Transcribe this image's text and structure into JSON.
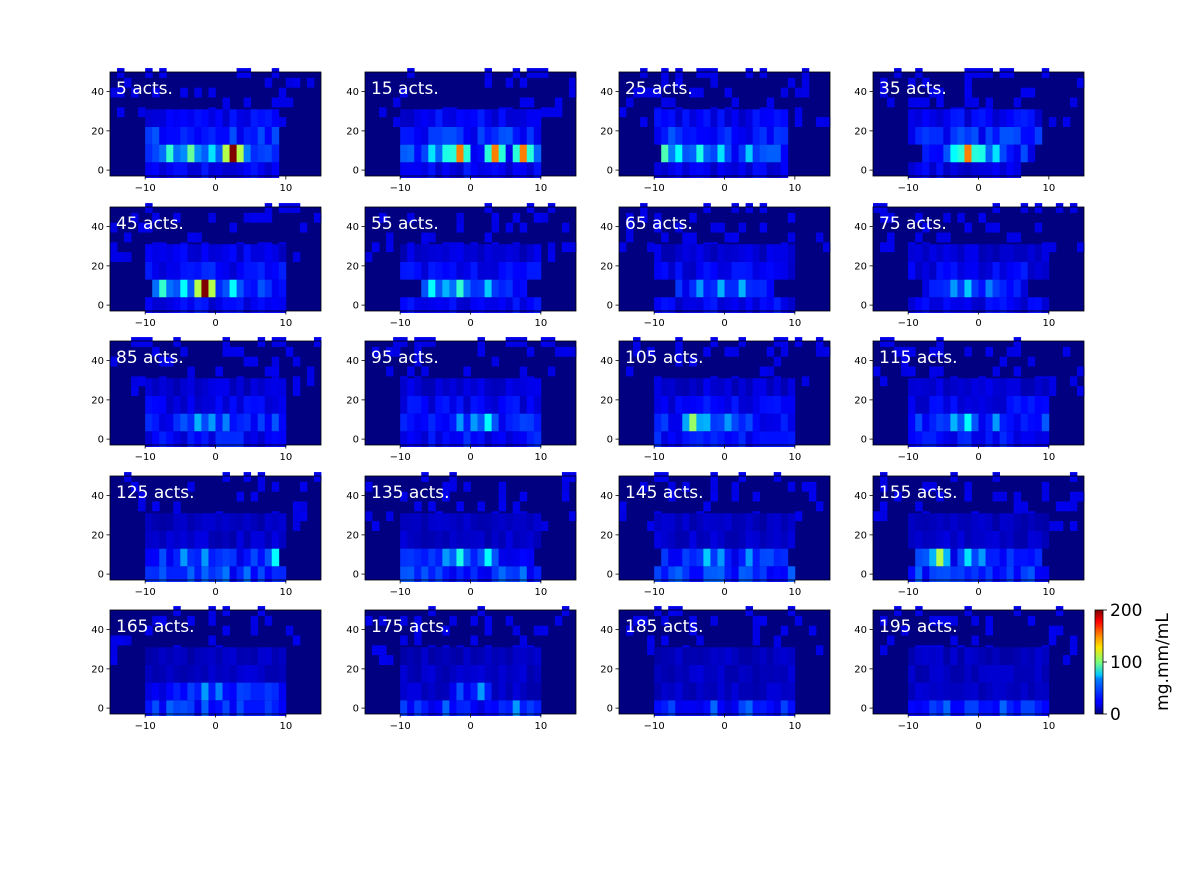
{
  "chart_data": {
    "type": "heatmap",
    "layout": "grid 5 rows x 4 columns of small-multiple heatmaps",
    "colormap": "jet",
    "background_value": 0,
    "xlim": [
      -15,
      15
    ],
    "ylim": [
      -3,
      50
    ],
    "xticks": [
      -10,
      0,
      10
    ],
    "yticks": [
      0,
      20,
      40
    ],
    "xtick_labels": [
      "−10",
      "0",
      "10"
    ],
    "ytick_labels": [
      "0",
      "20",
      "40"
    ],
    "row_edges": [
      -4,
      4,
      13,
      22,
      31
    ],
    "colorbar": {
      "label": "mg.mm/mL",
      "vmin": 0,
      "vmax": 200,
      "ticks": [
        0,
        100,
        200
      ],
      "tick_labels": [
        "0",
        "100",
        "200"
      ]
    },
    "panels": [
      {
        "title": "5 acts.",
        "rows": [
          {
            "x": [
              -10,
              9
            ],
            "base": 22
          },
          {
            "x": [
              -10,
              9
            ],
            "base": 32,
            "hot": [
              [
                -7,
                85
              ],
              [
                -4,
                95
              ],
              [
                -1,
                70
              ],
              [
                2,
                200
              ],
              [
                3,
                90
              ]
            ]
          },
          {
            "x": [
              -10,
              9
            ],
            "base": 30
          },
          {
            "x": [
              -10,
              9
            ],
            "base": 22
          }
        ]
      },
      {
        "title": "15 acts.",
        "rows": [
          {
            "x": [
              -10,
              10
            ],
            "base": 22
          },
          {
            "x": [
              -10,
              10
            ],
            "base": 32,
            "hot": [
              [
                -4,
                80
              ],
              [
                -2,
                150
              ],
              [
                3,
                150
              ],
              [
                7,
                150
              ],
              [
                -6,
                70
              ]
            ]
          },
          {
            "x": [
              -10,
              10
            ],
            "base": 30
          },
          {
            "x": [
              -10,
              10
            ],
            "base": 22
          }
        ]
      },
      {
        "title": "25 acts.",
        "rows": [
          {
            "x": [
              -10,
              9
            ],
            "base": 20
          },
          {
            "x": [
              -9,
              9
            ],
            "base": 32,
            "hot": [
              [
                -7,
                75
              ],
              [
                -4,
                80
              ],
              [
                -1,
                70
              ],
              [
                3,
                65
              ],
              [
                -9,
                90
              ]
            ]
          },
          {
            "x": [
              -10,
              9
            ],
            "base": 30
          },
          {
            "x": [
              -10,
              9
            ],
            "base": 22
          }
        ]
      },
      {
        "title": "35 acts.",
        "rows": [
          {
            "x": [
              -10,
              6
            ],
            "base": 20
          },
          {
            "x": [
              -8,
              8
            ],
            "base": 32,
            "hot": [
              [
                -2,
                150
              ],
              [
                0,
                80
              ],
              [
                2,
                70
              ],
              [
                -4,
                75
              ]
            ]
          },
          {
            "x": [
              -10,
              9
            ],
            "base": 30
          },
          {
            "x": [
              -10,
              9
            ],
            "base": 22
          }
        ]
      },
      {
        "title": "45 acts.",
        "rows": [
          {
            "x": [
              -10,
              10
            ],
            "base": 22
          },
          {
            "x": [
              -9,
              10
            ],
            "base": 30,
            "hot": [
              [
                -5,
                75
              ],
              [
                -2,
                200
              ],
              [
                2,
                75
              ],
              [
                -8,
                85
              ]
            ]
          },
          {
            "x": [
              -10,
              10
            ],
            "base": 25
          },
          {
            "x": [
              -10,
              10
            ],
            "base": 20
          }
        ]
      },
      {
        "title": "55 acts.",
        "rows": [
          {
            "x": [
              -10,
              10
            ],
            "base": 22
          },
          {
            "x": [
              -7,
              8
            ],
            "base": 30,
            "hot": [
              [
                -6,
                75
              ],
              [
                -2,
                85
              ],
              [
                2,
                65
              ],
              [
                -4,
                60
              ]
            ]
          },
          {
            "x": [
              -10,
              10
            ],
            "base": 22
          },
          {
            "x": [
              -10,
              10
            ],
            "base": 16
          }
        ]
      },
      {
        "title": "65 acts.",
        "rows": [
          {
            "x": [
              -10,
              10
            ],
            "base": 22
          },
          {
            "x": [
              -7,
              7
            ],
            "base": 28,
            "hot": [
              [
                -4,
                55
              ],
              [
                -1,
                60
              ],
              [
                2,
                60
              ]
            ]
          },
          {
            "x": [
              -10,
              10
            ],
            "base": 22
          },
          {
            "x": [
              -10,
              10
            ],
            "base": 16
          }
        ]
      },
      {
        "title": "75 acts.",
        "rows": [
          {
            "x": [
              -10,
              10
            ],
            "base": 22
          },
          {
            "x": [
              -8,
              7
            ],
            "base": 28,
            "hot": [
              [
                -2,
                65
              ],
              [
                -4,
                55
              ],
              [
                1,
                50
              ]
            ]
          },
          {
            "x": [
              -10,
              10
            ],
            "base": 22
          },
          {
            "x": [
              -10,
              10
            ],
            "base": 16
          }
        ]
      },
      {
        "title": "85 acts.",
        "rows": [
          {
            "x": [
              -10,
              10
            ],
            "base": 25
          },
          {
            "x": [
              -10,
              10
            ],
            "base": 30,
            "hot": [
              [
                -3,
                60
              ],
              [
                -1,
                55
              ],
              [
                1,
                50
              ]
            ]
          },
          {
            "x": [
              -10,
              10
            ],
            "base": 22
          },
          {
            "x": [
              -10,
              10
            ],
            "base": 16
          }
        ]
      },
      {
        "title": "95 acts.",
        "rows": [
          {
            "x": [
              -10,
              10
            ],
            "base": 25
          },
          {
            "x": [
              -10,
              10
            ],
            "base": 30,
            "hot": [
              [
                -2,
                55
              ],
              [
                2,
                75
              ],
              [
                0,
                55
              ]
            ]
          },
          {
            "x": [
              -10,
              10
            ],
            "base": 22
          },
          {
            "x": [
              -10,
              10
            ],
            "base": 16
          }
        ]
      },
      {
        "title": "105 acts.",
        "rows": [
          {
            "x": [
              -10,
              10
            ],
            "base": 25
          },
          {
            "x": [
              -10,
              10
            ],
            "base": 30,
            "hot": [
              [
                -5,
                105
              ],
              [
                -3,
                60
              ],
              [
                0,
                55
              ]
            ]
          },
          {
            "x": [
              -10,
              10
            ],
            "base": 22
          },
          {
            "x": [
              -10,
              10
            ],
            "base": 16
          }
        ]
      },
      {
        "title": "115 acts.",
        "rows": [
          {
            "x": [
              -10,
              10
            ],
            "base": 25
          },
          {
            "x": [
              -10,
              10
            ],
            "base": 30,
            "hot": [
              [
                -2,
                75
              ],
              [
                -4,
                60
              ],
              [
                2,
                55
              ]
            ]
          },
          {
            "x": [
              -10,
              10
            ],
            "base": 22
          },
          {
            "x": [
              -10,
              10
            ],
            "base": 16
          }
        ]
      },
      {
        "title": "125 acts.",
        "rows": [
          {
            "x": [
              -10,
              10
            ],
            "base": 35
          },
          {
            "x": [
              -10,
              9
            ],
            "base": 30,
            "hot": [
              [
                -5,
                55
              ],
              [
                -2,
                55
              ],
              [
                8,
                75
              ]
            ]
          },
          {
            "x": [
              -10,
              10
            ],
            "base": 14
          },
          {
            "x": [
              -10,
              10
            ],
            "base": 12
          }
        ]
      },
      {
        "title": "135 acts.",
        "rows": [
          {
            "x": [
              -10,
              10
            ],
            "base": 35
          },
          {
            "x": [
              -10,
              9
            ],
            "base": 30,
            "hot": [
              [
                -2,
                80
              ],
              [
                2,
                75
              ],
              [
                -4,
                55
              ]
            ]
          },
          {
            "x": [
              -10,
              10
            ],
            "base": 14
          },
          {
            "x": [
              -10,
              10
            ],
            "base": 12
          }
        ]
      },
      {
        "title": "145 acts.",
        "rows": [
          {
            "x": [
              -10,
              10
            ],
            "base": 32
          },
          {
            "x": [
              -9,
              9
            ],
            "base": 30,
            "hot": [
              [
                -3,
                65
              ],
              [
                -1,
                55
              ],
              [
                3,
                55
              ]
            ]
          },
          {
            "x": [
              -10,
              10
            ],
            "base": 14
          },
          {
            "x": [
              -10,
              10
            ],
            "base": 12
          }
        ]
      },
      {
        "title": "155 acts.",
        "rows": [
          {
            "x": [
              -10,
              10
            ],
            "base": 32
          },
          {
            "x": [
              -9,
              9
            ],
            "base": 30,
            "hot": [
              [
                -6,
                110
              ],
              [
                -2,
                70
              ],
              [
                0,
                55
              ]
            ]
          },
          {
            "x": [
              -10,
              10
            ],
            "base": 14
          },
          {
            "x": [
              -10,
              10
            ],
            "base": 12
          }
        ]
      },
      {
        "title": "165 acts.",
        "rows": [
          {
            "x": [
              -10,
              10
            ],
            "base": 32
          },
          {
            "x": [
              -10,
              10
            ],
            "base": 28,
            "hot": [
              [
                -2,
                55
              ],
              [
                0,
                50
              ]
            ]
          },
          {
            "x": [
              -10,
              10
            ],
            "base": 14
          },
          {
            "x": [
              -10,
              10
            ],
            "base": 12
          }
        ]
      },
      {
        "title": "175 acts.",
        "rows": [
          {
            "x": [
              -10,
              10
            ],
            "base": 28,
            "hot": [
              [
                -4,
                45
              ],
              [
                6,
                55
              ]
            ]
          },
          {
            "x": [
              -10,
              10
            ],
            "base": 14,
            "hot": [
              [
                1,
                55
              ],
              [
                -2,
                40
              ]
            ]
          },
          {
            "x": [
              -10,
              10
            ],
            "base": 14
          },
          {
            "x": [
              -10,
              10
            ],
            "base": 12
          }
        ]
      },
      {
        "title": "185 acts.",
        "rows": [
          {
            "x": [
              -10,
              10
            ],
            "base": 28,
            "hot": [
              [
                -2,
                45
              ],
              [
                3,
                45
              ]
            ]
          },
          {
            "x": [
              -10,
              10
            ],
            "base": 13
          },
          {
            "x": [
              -10,
              10
            ],
            "base": 13
          },
          {
            "x": [
              -10,
              10
            ],
            "base": 12
          }
        ]
      },
      {
        "title": "195 acts.",
        "rows": [
          {
            "x": [
              -10,
              10
            ],
            "base": 28,
            "hot": [
              [
                -5,
                45
              ],
              [
                3,
                45
              ]
            ]
          },
          {
            "x": [
              -10,
              10
            ],
            "base": 13
          },
          {
            "x": [
              -10,
              10
            ],
            "base": 13
          },
          {
            "x": [
              -10,
              10
            ],
            "base": 12
          }
        ]
      }
    ]
  }
}
